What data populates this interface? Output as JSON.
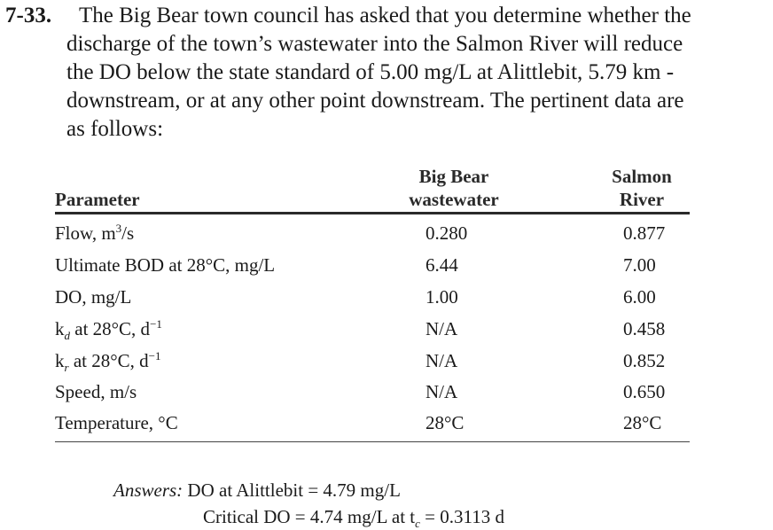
{
  "problem": {
    "number": "7-33.",
    "lines": [
      "The Big Bear town council has asked that you determine whether the",
      "discharge of the town’s wastewater into the Salmon River will reduce",
      "the DO below the state standard of 5.00 mg/L at Alittlebit, 5.79 km -",
      "downstream, or at any other point downstream. The pertinent data are",
      "as follows:"
    ]
  },
  "table": {
    "headers": {
      "parameter": "Parameter",
      "big_bear": [
        "Big Bear",
        "wastewater"
      ],
      "salmon": [
        "Salmon",
        "River"
      ]
    },
    "rows": [
      {
        "pre": "Flow, m",
        "sup": "3",
        "post": "/s",
        "big_bear": "0.280",
        "salmon": "0.877"
      },
      {
        "pre": "Ultimate BOD at 28°C, mg/L",
        "big_bear": "6.44",
        "salmon": "7.00"
      },
      {
        "pre": "DO, mg/L",
        "big_bear": "1.00",
        "salmon": "6.00"
      },
      {
        "pre": "k",
        "sub": "d",
        "post": " at 28°C, d",
        "sup": "−1",
        "big_bear": "N/A",
        "salmon": "0.458"
      },
      {
        "pre": "k",
        "sub": "r",
        "post": " at 28°C, d",
        "sup": "−1",
        "big_bear": "N/A",
        "salmon": "0.852"
      },
      {
        "pre": "Speed, m/s",
        "big_bear": "N/A",
        "salmon": "0.650"
      },
      {
        "pre": "Temperature, °C",
        "big_bear": "28°C",
        "salmon": "28°C"
      }
    ]
  },
  "answers": {
    "label": "Answers:",
    "line1": "DO at Alittlebit = 4.79 mg/L",
    "line2_pre": "Critical DO = 4.74 mg/L at t",
    "line2_sub": "c",
    "line2_post": " = 0.3113 d"
  }
}
